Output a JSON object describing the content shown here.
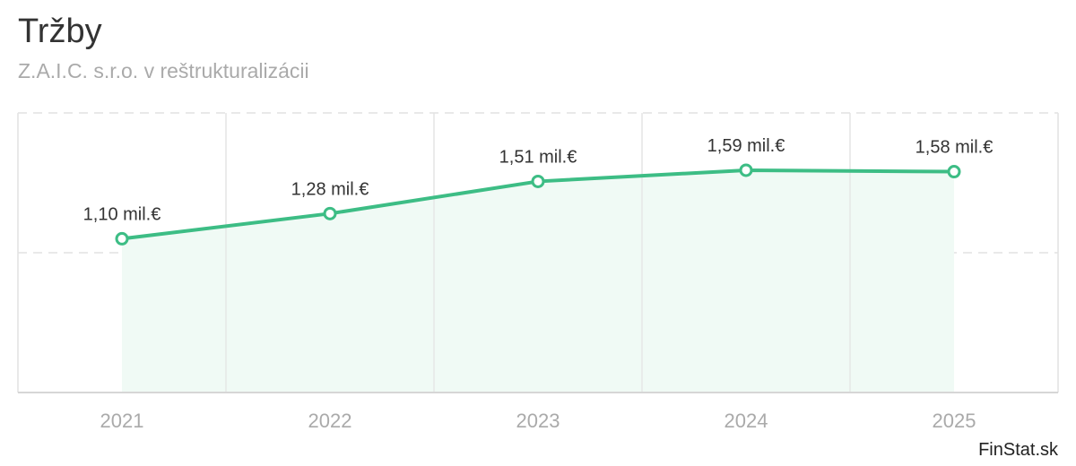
{
  "header": {
    "title": "Tržby",
    "subtitle": "Z.A.I.C. s.r.o. v reštrukturalizácii"
  },
  "credit": "FinStat.sk",
  "colors": {
    "line": "#3dbd85",
    "area": "#f0faf5",
    "grid": "#e2e2e2",
    "axis_label": "#aaaaaa",
    "data_label": "#333333"
  },
  "chart_data": {
    "type": "area",
    "title": "Tržby",
    "subtitle": "Z.A.I.C. s.r.o. v reštrukturalizácii",
    "categories": [
      "2021",
      "2022",
      "2023",
      "2024",
      "2025"
    ],
    "series": [
      {
        "values": [
          1.1,
          1.28,
          1.51,
          1.59,
          1.58
        ],
        "labels": [
          "1,10 mil.€",
          "1,28 mil.€",
          "1,51 mil.€",
          "1,59 mil.€",
          "1,58 mil.€"
        ]
      }
    ],
    "ylim": [
      0,
      2
    ],
    "unit": "mil.€",
    "grid": true,
    "legend": "none"
  }
}
